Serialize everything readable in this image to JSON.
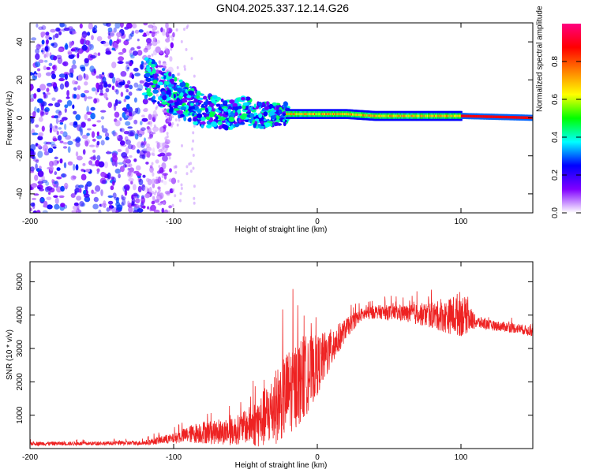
{
  "title": "GN04.2025.337.12.14.G26",
  "chart_data": [
    {
      "type": "heatmap",
      "name": "spectrogram",
      "xlabel": "Height of straight line (km)",
      "ylabel": "Frequency (Hz)",
      "xlim": [
        -200,
        150
      ],
      "ylim": [
        -50,
        50
      ],
      "xticks": [
        -200,
        -100,
        0,
        100
      ],
      "xtick_labels": [
        "-200",
        "-100",
        "0",
        "100"
      ],
      "yticks": [
        -40,
        -20,
        0,
        20,
        40
      ],
      "ytick_labels": [
        "-40",
        "-20",
        "0",
        "20",
        "40"
      ],
      "colorbar": {
        "label": "Normalized spectral amplitude",
        "range": [
          0,
          1
        ],
        "ticks": [
          0,
          0.2,
          0.4,
          0.6,
          0.8
        ],
        "tick_labels": [
          "0.0",
          "0.2",
          "0.4",
          "0.6",
          "0.8"
        ],
        "colors": [
          "#ffffff",
          "#8000ff",
          "#0000ff",
          "#00ffff",
          "#00ff00",
          "#ffff00",
          "#ff8000",
          "#ff0000",
          "#ff0080"
        ]
      },
      "ridge": {
        "x": [
          -120,
          -110,
          -100,
          -90,
          -80,
          -70,
          -60,
          -50,
          -40,
          -30,
          -20,
          -10,
          0,
          10,
          20,
          40,
          60,
          80,
          100,
          150
        ],
        "freq": [
          22,
          17,
          12,
          8,
          4,
          3,
          2,
          4,
          1,
          2,
          2,
          2,
          2,
          2,
          2,
          1,
          1,
          1,
          1,
          0
        ]
      },
      "noise_region_x": [
        -200,
        -110
      ]
    },
    {
      "type": "line",
      "name": "snr",
      "xlabel": "Height of straight line (km)",
      "ylabel": "SNR (10 * v/v)",
      "xlim": [
        -200,
        150
      ],
      "ylim": [
        0,
        5600
      ],
      "xticks": [
        -200,
        -100,
        0,
        100
      ],
      "xtick_labels": [
        "-200",
        "-100",
        "0",
        "100"
      ],
      "yticks": [
        1000,
        2000,
        3000,
        4000,
        5000
      ],
      "ytick_labels": [
        "1000",
        "2000",
        "3000",
        "4000",
        "5000"
      ],
      "color": "#ee2222",
      "series": [
        {
          "name": "SNR",
          "x": [
            -200,
            -180,
            -160,
            -140,
            -120,
            -110,
            -100,
            -90,
            -80,
            -70,
            -60,
            -50,
            -40,
            -30,
            -20,
            -10,
            0,
            10,
            20,
            30,
            40,
            60,
            80,
            90,
            100,
            110,
            120,
            140,
            150
          ],
          "y": [
            150,
            150,
            150,
            160,
            170,
            250,
            300,
            420,
            500,
            480,
            500,
            650,
            800,
            1200,
            1700,
            2100,
            2500,
            3000,
            3600,
            4000,
            4100,
            4050,
            4000,
            3950,
            4050,
            3800,
            3700,
            3600,
            3500
          ],
          "spread": [
            60,
            60,
            60,
            60,
            70,
            120,
            150,
            250,
            350,
            350,
            400,
            500,
            800,
            1100,
            1300,
            1300,
            900,
            600,
            300,
            200,
            200,
            250,
            400,
            500,
            700,
            200,
            150,
            150,
            150
          ]
        }
      ]
    }
  ]
}
